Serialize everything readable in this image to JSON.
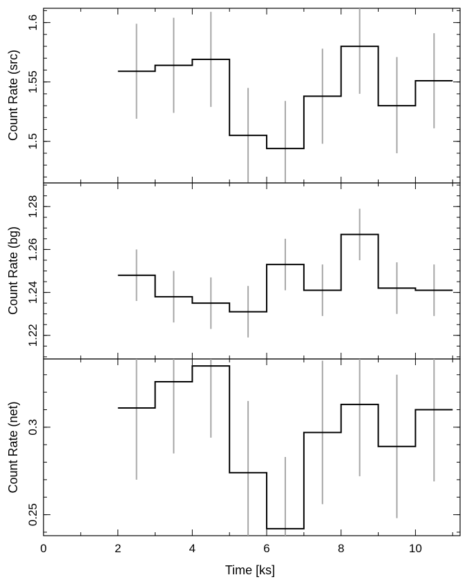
{
  "chart_data": [
    {
      "type": "line",
      "ylabel": "Count Rate (src)",
      "ylim": [
        1.465,
        1.612
      ],
      "yticks": [
        1.5,
        1.55,
        1.6
      ],
      "ytick_labels": [
        "1.5",
        "1.55",
        "1.6"
      ],
      "yminor_step": 0.01,
      "xlim": [
        0,
        11.2
      ],
      "bin_edges": [
        2,
        3,
        4,
        5,
        6,
        7,
        8,
        9,
        10,
        11
      ],
      "x": [
        2.5,
        3.5,
        4.5,
        5.5,
        6.5,
        7.5,
        8.5,
        9.5,
        10.5
      ],
      "values": [
        1.559,
        1.564,
        1.569,
        1.505,
        1.494,
        1.538,
        1.58,
        1.53,
        1.551
      ],
      "err_low": [
        1.519,
        1.524,
        1.529,
        1.465,
        1.465,
        1.498,
        1.54,
        1.49,
        1.511
      ],
      "err_high": [
        1.599,
        1.604,
        1.609,
        1.545,
        1.534,
        1.578,
        1.612,
        1.571,
        1.591
      ]
    },
    {
      "type": "line",
      "ylabel": "Count Rate (bg)",
      "ylim": [
        1.209,
        1.291
      ],
      "yticks": [
        1.22,
        1.24,
        1.26,
        1.28
      ],
      "ytick_labels": [
        "1.22",
        "1.24",
        "1.26",
        "1.28"
      ],
      "yminor_step": 0.005,
      "xlim": [
        0,
        11.2
      ],
      "bin_edges": [
        2,
        3,
        4,
        5,
        6,
        7,
        8,
        9,
        10,
        11
      ],
      "x": [
        2.5,
        3.5,
        4.5,
        5.5,
        6.5,
        7.5,
        8.5,
        9.5,
        10.5
      ],
      "values": [
        1.248,
        1.238,
        1.235,
        1.231,
        1.253,
        1.241,
        1.267,
        1.242,
        1.241
      ],
      "err_low": [
        1.236,
        1.226,
        1.223,
        1.219,
        1.241,
        1.229,
        1.255,
        1.23,
        1.229
      ],
      "err_high": [
        1.26,
        1.25,
        1.247,
        1.243,
        1.265,
        1.253,
        1.279,
        1.254,
        1.253
      ]
    },
    {
      "type": "line",
      "ylabel": "Count Rate (net)",
      "xlabel": "Time [ks]",
      "ylim": [
        0.238,
        0.339
      ],
      "yticks": [
        0.25,
        0.3
      ],
      "ytick_labels": [
        "0.25",
        "0.3"
      ],
      "yminor_step": 0.01,
      "xlim": [
        0,
        11.2
      ],
      "xticks": [
        0,
        2,
        4,
        6,
        8,
        10
      ],
      "xtick_labels": [
        "0",
        "2",
        "4",
        "6",
        "8",
        "10"
      ],
      "bin_edges": [
        2,
        3,
        4,
        5,
        6,
        7,
        8,
        9,
        10,
        11
      ],
      "x": [
        2.5,
        3.5,
        4.5,
        5.5,
        6.5,
        7.5,
        8.5,
        9.5,
        10.5
      ],
      "values": [
        0.311,
        0.326,
        0.335,
        0.274,
        0.242,
        0.297,
        0.313,
        0.289,
        0.31
      ],
      "err_low": [
        0.27,
        0.285,
        0.294,
        0.238,
        0.238,
        0.256,
        0.272,
        0.248,
        0.269
      ],
      "err_high": [
        0.339,
        0.339,
        0.339,
        0.315,
        0.283,
        0.338,
        0.339,
        0.33,
        0.339
      ]
    }
  ]
}
